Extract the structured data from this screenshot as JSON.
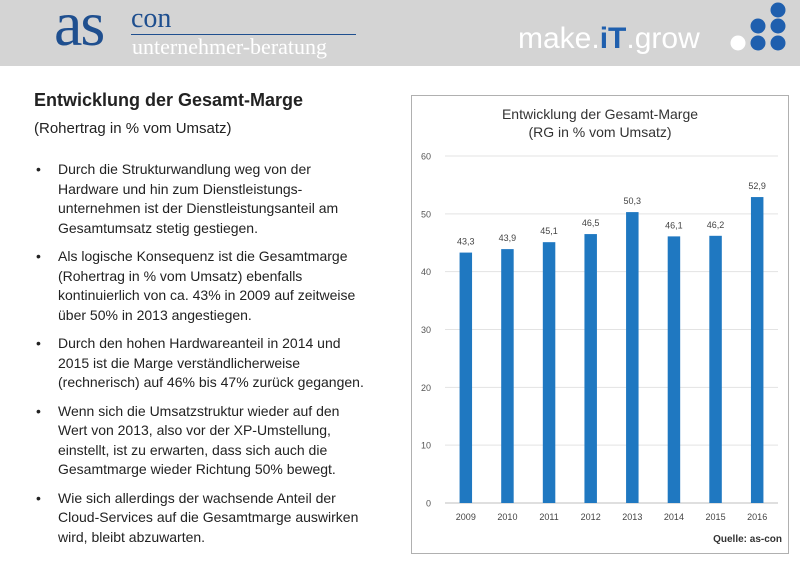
{
  "header": {
    "logo_as": "as",
    "logo_con": "con",
    "logo_sub": "unternehmer-beratung",
    "slogan_pre": "make.",
    "slogan_it": "iT",
    "slogan_post": ".grow",
    "colors": {
      "bar": "#e6e6e6",
      "brand_blue": "#1f4f8f",
      "dot_blue": "#1f5fae"
    }
  },
  "content": {
    "title": "Entwicklung der Gesamt-Marge",
    "subtitle": "(Rohertrag in % vom Umsatz)",
    "bullets": [
      "Durch die Strukturwandlung weg von der Hardware und hin zum Dienstleistungs-unternehmen ist der Dienstleistungsanteil am Gesamtumsatz stetig gestiegen.",
      "Als logische Konsequenz ist die Gesamtmarge (Rohertrag in % vom Umsatz) ebenfalls kontinuierlich von ca. 43% in 2009 auf zeitweise über 50% in 2013 angestiegen.",
      "Durch den hohen Hardwareanteil in 2014 und 2015 ist die Marge verständlicherweise (rechnerisch) auf 46% bis 47% zurück gegangen.",
      "Wenn sich die Umsatzstruktur wieder auf den Wert von 2013, also vor der XP-Umstellung, einstellt, ist zu erwarten, dass sich auch die Gesamtmarge wieder Richtung 50% bewegt.",
      "Wie sich allerdings der wachsende Anteil der Cloud-Services auf die Gesamtmarge auswirken wird, bleibt abzuwarten."
    ],
    "bullet_glyph": "•"
  },
  "chart_data": {
    "type": "bar",
    "title": "Entwicklung der Gesamt-Marge",
    "subtitle": "(RG in % vom Umsatz)",
    "categories": [
      "2009",
      "2010",
      "2011",
      "2012",
      "2013",
      "2014",
      "2015",
      "2016"
    ],
    "values": [
      43.3,
      43.9,
      45.1,
      46.5,
      50.3,
      46.1,
      46.2,
      52.9
    ],
    "value_labels": [
      "43,3",
      "43,9",
      "45,1",
      "46,5",
      "50,3",
      "46,1",
      "46,2",
      "52,9"
    ],
    "ylim": [
      0,
      60
    ],
    "yticks": [
      0,
      10,
      20,
      30,
      40,
      50,
      60
    ],
    "grid": true,
    "bar_color": "#1f78c1",
    "source": "Quelle: as-con"
  }
}
